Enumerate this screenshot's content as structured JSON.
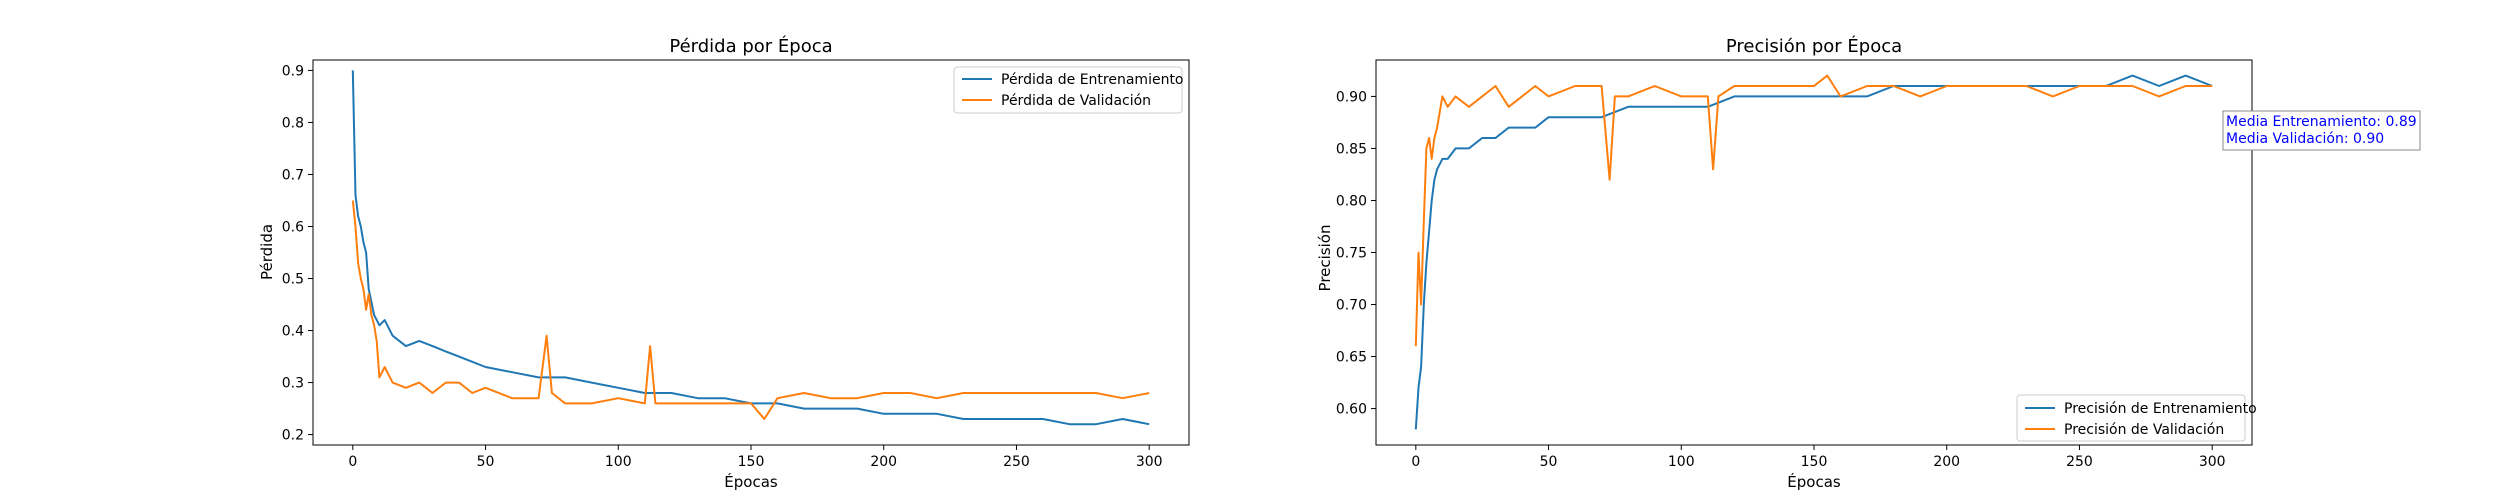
{
  "chart_data": [
    {
      "type": "line",
      "title": "Pérdida por Época",
      "xlabel": "Épocas",
      "ylabel": "Pérdida",
      "xlim": [
        -15,
        315
      ],
      "ylim": [
        0.18,
        0.92
      ],
      "xticks": [
        0,
        50,
        100,
        150,
        200,
        250,
        300
      ],
      "yticks": [
        0.2,
        0.3,
        0.4,
        0.5,
        0.6,
        0.7,
        0.8,
        0.9
      ],
      "ytick_labels": [
        "0.2",
        "0.3",
        "0.4",
        "0.5",
        "0.6",
        "0.7",
        "0.8",
        "0.9"
      ],
      "legend_position": "top-right",
      "series": [
        {
          "name": "Pérdida de Entrenamiento",
          "color": "#1f77b4",
          "x": [
            0,
            1,
            2,
            3,
            4,
            5,
            6,
            8,
            10,
            12,
            15,
            20,
            25,
            30,
            35,
            40,
            45,
            50,
            60,
            70,
            80,
            90,
            100,
            110,
            120,
            130,
            140,
            150,
            160,
            170,
            180,
            190,
            200,
            210,
            220,
            230,
            240,
            250,
            260,
            270,
            280,
            290,
            300
          ],
          "values": [
            0.9,
            0.66,
            0.62,
            0.6,
            0.57,
            0.55,
            0.48,
            0.43,
            0.41,
            0.42,
            0.39,
            0.37,
            0.38,
            0.37,
            0.36,
            0.35,
            0.34,
            0.33,
            0.32,
            0.31,
            0.31,
            0.3,
            0.29,
            0.28,
            0.28,
            0.27,
            0.27,
            0.26,
            0.26,
            0.25,
            0.25,
            0.25,
            0.24,
            0.24,
            0.24,
            0.23,
            0.23,
            0.23,
            0.23,
            0.22,
            0.22,
            0.23,
            0.22
          ]
        },
        {
          "name": "Pérdida de Validación",
          "color": "#ff7f0e",
          "x": [
            0,
            1,
            2,
            3,
            4,
            5,
            6,
            7,
            8,
            9,
            10,
            12,
            15,
            20,
            25,
            30,
            35,
            40,
            45,
            50,
            60,
            70,
            73,
            75,
            80,
            90,
            100,
            110,
            112,
            114,
            120,
            130,
            140,
            150,
            155,
            160,
            170,
            180,
            190,
            200,
            210,
            220,
            230,
            240,
            250,
            260,
            270,
            280,
            290,
            300
          ],
          "values": [
            0.65,
            0.6,
            0.53,
            0.5,
            0.48,
            0.44,
            0.47,
            0.43,
            0.41,
            0.38,
            0.31,
            0.33,
            0.3,
            0.29,
            0.3,
            0.28,
            0.3,
            0.3,
            0.28,
            0.29,
            0.27,
            0.27,
            0.39,
            0.28,
            0.26,
            0.26,
            0.27,
            0.26,
            0.37,
            0.26,
            0.26,
            0.26,
            0.26,
            0.26,
            0.23,
            0.27,
            0.28,
            0.27,
            0.27,
            0.28,
            0.28,
            0.27,
            0.28,
            0.28,
            0.28,
            0.28,
            0.28,
            0.28,
            0.27,
            0.28
          ]
        }
      ]
    },
    {
      "type": "line",
      "title": "Precisión por Época",
      "xlabel": "Épocas",
      "ylabel": "Precisión",
      "xlim": [
        -15,
        315
      ],
      "ylim": [
        0.565,
        0.935
      ],
      "xticks": [
        0,
        50,
        100,
        150,
        200,
        250,
        300
      ],
      "yticks": [
        0.6,
        0.65,
        0.7,
        0.75,
        0.8,
        0.85,
        0.9
      ],
      "ytick_labels": [
        "0.60",
        "0.65",
        "0.70",
        "0.75",
        "0.80",
        "0.85",
        "0.90"
      ],
      "legend_position": "bottom-right",
      "series": [
        {
          "name": "Precisión de Entrenamiento",
          "color": "#1f77b4",
          "x": [
            0,
            1,
            2,
            3,
            4,
            5,
            6,
            7,
            8,
            10,
            12,
            15,
            20,
            25,
            30,
            35,
            40,
            45,
            50,
            60,
            70,
            80,
            90,
            100,
            110,
            120,
            130,
            140,
            150,
            160,
            170,
            180,
            190,
            200,
            210,
            220,
            230,
            240,
            250,
            260,
            270,
            280,
            290,
            300
          ],
          "values": [
            0.58,
            0.62,
            0.64,
            0.7,
            0.74,
            0.77,
            0.8,
            0.82,
            0.83,
            0.84,
            0.84,
            0.85,
            0.85,
            0.86,
            0.86,
            0.87,
            0.87,
            0.87,
            0.88,
            0.88,
            0.88,
            0.89,
            0.89,
            0.89,
            0.89,
            0.9,
            0.9,
            0.9,
            0.9,
            0.9,
            0.9,
            0.91,
            0.91,
            0.91,
            0.91,
            0.91,
            0.91,
            0.91,
            0.91,
            0.91,
            0.92,
            0.91,
            0.92,
            0.91
          ]
        },
        {
          "name": "Precisión de Validación",
          "color": "#ff7f0e",
          "x": [
            0,
            1,
            2,
            3,
            4,
            5,
            6,
            7,
            8,
            10,
            12,
            15,
            20,
            25,
            30,
            35,
            40,
            45,
            50,
            60,
            70,
            73,
            75,
            80,
            90,
            100,
            110,
            112,
            114,
            120,
            130,
            140,
            150,
            155,
            160,
            170,
            180,
            190,
            200,
            210,
            220,
            230,
            240,
            250,
            260,
            270,
            280,
            290,
            300
          ],
          "values": [
            0.66,
            0.75,
            0.7,
            0.78,
            0.85,
            0.86,
            0.84,
            0.86,
            0.87,
            0.9,
            0.89,
            0.9,
            0.89,
            0.9,
            0.91,
            0.89,
            0.9,
            0.91,
            0.9,
            0.91,
            0.91,
            0.82,
            0.9,
            0.9,
            0.91,
            0.9,
            0.9,
            0.83,
            0.9,
            0.91,
            0.91,
            0.91,
            0.91,
            0.92,
            0.9,
            0.91,
            0.91,
            0.9,
            0.91,
            0.91,
            0.91,
            0.91,
            0.9,
            0.91,
            0.91,
            0.91,
            0.9,
            0.91,
            0.91
          ]
        }
      ],
      "annotation": {
        "lines": [
          "Media Entrenamiento: 0.89",
          "Media Validación: 0.90"
        ],
        "color": "#0000ff"
      }
    }
  ]
}
